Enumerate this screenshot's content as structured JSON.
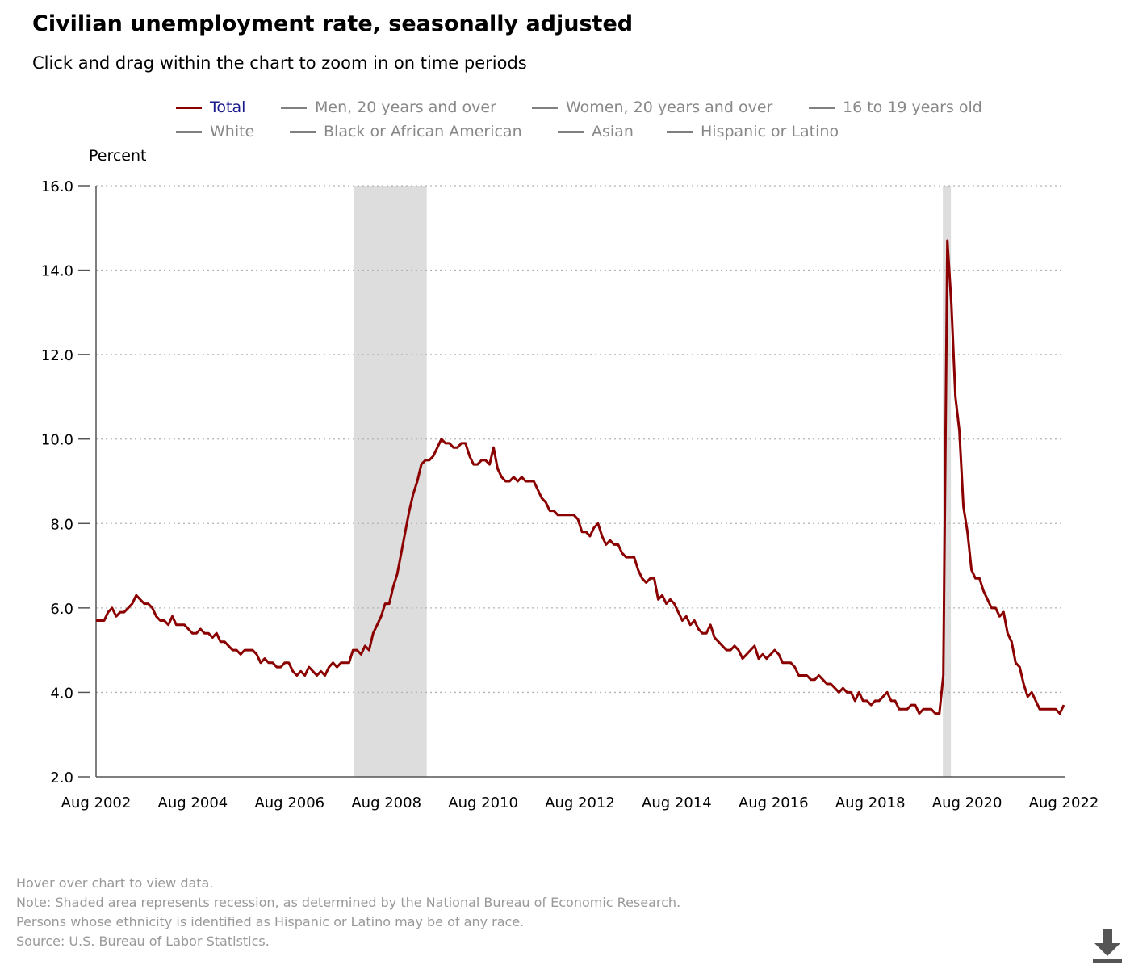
{
  "title": "Civilian unemployment rate, seasonally adjusted",
  "subtitle": "Click and drag within the chart to zoom in on time periods",
  "legend": [
    {
      "label": "Total",
      "color": "#8b0000",
      "active": true
    },
    {
      "label": "Men, 20 years and over",
      "color": "#808080",
      "active": false
    },
    {
      "label": "Women, 20 years and over",
      "color": "#808080",
      "active": false
    },
    {
      "label": "16 to 19 years old",
      "color": "#808080",
      "active": false
    },
    {
      "label": "White",
      "color": "#808080",
      "active": false
    },
    {
      "label": "Black or African American",
      "color": "#808080",
      "active": false
    },
    {
      "label": "Asian",
      "color": "#808080",
      "active": false
    },
    {
      "label": "Hispanic or Latino",
      "color": "#808080",
      "active": false
    }
  ],
  "notes": [
    "Hover over chart to view data.",
    "Note: Shaded area represents recession, as determined by the National Bureau of Economic Research.",
    "Persons whose ethnicity is identified as Hispanic or Latino may be of any race.",
    "Source: U.S. Bureau of Labor Statistics."
  ],
  "download_icon": "download-icon",
  "chart_data": {
    "type": "line",
    "ylabel": "Percent",
    "xlabel": "",
    "ylim": [
      2.0,
      16.0
    ],
    "yticks": [
      "2.0",
      "4.0",
      "6.0",
      "8.0",
      "10.0",
      "12.0",
      "14.0",
      "16.0"
    ],
    "xticks": [
      "Aug 2002",
      "Aug 2004",
      "Aug 2006",
      "Aug 2008",
      "Aug 2010",
      "Aug 2012",
      "Aug 2014",
      "Aug 2016",
      "Aug 2018",
      "Aug 2020",
      "Aug 2022"
    ],
    "x_start": "2002-08",
    "x_end": "2022-08",
    "grid": "horizontal dotted",
    "recessions": [
      {
        "start": "2007-12",
        "end": "2009-06"
      },
      {
        "start": "2020-02",
        "end": "2020-04"
      }
    ],
    "recession_color": "#dddddd",
    "series": [
      {
        "name": "Total",
        "color": "#8b0000",
        "values": [
          5.7,
          5.7,
          5.7,
          5.9,
          6.0,
          5.8,
          5.9,
          5.9,
          6.0,
          6.1,
          6.3,
          6.2,
          6.1,
          6.1,
          6.0,
          5.8,
          5.7,
          5.7,
          5.6,
          5.8,
          5.6,
          5.6,
          5.6,
          5.5,
          5.4,
          5.4,
          5.5,
          5.4,
          5.4,
          5.3,
          5.4,
          5.2,
          5.2,
          5.1,
          5.0,
          5.0,
          4.9,
          5.0,
          5.0,
          5.0,
          4.9,
          4.7,
          4.8,
          4.7,
          4.7,
          4.6,
          4.6,
          4.7,
          4.7,
          4.5,
          4.4,
          4.5,
          4.4,
          4.6,
          4.5,
          4.4,
          4.5,
          4.4,
          4.6,
          4.7,
          4.6,
          4.7,
          4.7,
          4.7,
          5.0,
          5.0,
          4.9,
          5.1,
          5.0,
          5.4,
          5.6,
          5.8,
          6.1,
          6.1,
          6.5,
          6.8,
          7.3,
          7.8,
          8.3,
          8.7,
          9.0,
          9.4,
          9.5,
          9.5,
          9.6,
          9.8,
          10.0,
          9.9,
          9.9,
          9.8,
          9.8,
          9.9,
          9.9,
          9.6,
          9.4,
          9.4,
          9.5,
          9.5,
          9.4,
          9.8,
          9.3,
          9.1,
          9.0,
          9.0,
          9.1,
          9.0,
          9.1,
          9.0,
          9.0,
          9.0,
          8.8,
          8.6,
          8.5,
          8.3,
          8.3,
          8.2,
          8.2,
          8.2,
          8.2,
          8.2,
          8.1,
          7.8,
          7.8,
          7.7,
          7.9,
          8.0,
          7.7,
          7.5,
          7.6,
          7.5,
          7.5,
          7.3,
          7.2,
          7.2,
          7.2,
          6.9,
          6.7,
          6.6,
          6.7,
          6.7,
          6.2,
          6.3,
          6.1,
          6.2,
          6.1,
          5.9,
          5.7,
          5.8,
          5.6,
          5.7,
          5.5,
          5.4,
          5.4,
          5.6,
          5.3,
          5.2,
          5.1,
          5.0,
          5.0,
          5.1,
          5.0,
          4.8,
          4.9,
          5.0,
          5.1,
          4.8,
          4.9,
          4.8,
          4.9,
          5.0,
          4.9,
          4.7,
          4.7,
          4.7,
          4.6,
          4.4,
          4.4,
          4.4,
          4.3,
          4.3,
          4.4,
          4.3,
          4.2,
          4.2,
          4.1,
          4.0,
          4.1,
          4.0,
          4.0,
          3.8,
          4.0,
          3.8,
          3.8,
          3.7,
          3.8,
          3.8,
          3.9,
          4.0,
          3.8,
          3.8,
          3.6,
          3.6,
          3.6,
          3.7,
          3.7,
          3.5,
          3.6,
          3.6,
          3.6,
          3.5,
          3.5,
          4.4,
          14.7,
          13.2,
          11.0,
          10.2,
          8.4,
          7.8,
          6.9,
          6.7,
          6.7,
          6.4,
          6.2,
          6.0,
          6.0,
          5.8,
          5.9,
          5.4,
          5.2,
          4.7,
          4.6,
          4.2,
          3.9,
          4.0,
          3.8,
          3.6,
          3.6,
          3.6,
          3.6,
          3.6,
          3.5,
          3.7
        ]
      }
    ]
  }
}
